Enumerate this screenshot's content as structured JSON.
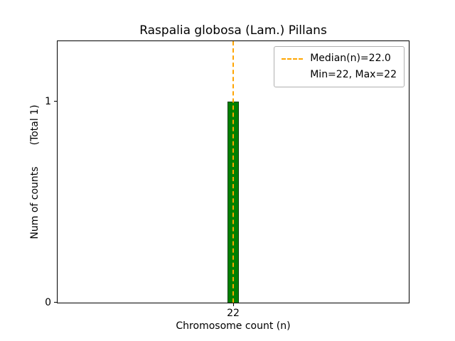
{
  "chart_data": {
    "type": "bar",
    "title": "Raspalia globosa (Lam.) Pillans",
    "xlabel": "Chromosome count (n)",
    "ylabel": "Num of counts",
    "ylabel_annotation": "(Total 1)",
    "categories": [
      "22"
    ],
    "values": [
      1
    ],
    "ylim": [
      0,
      1.3
    ],
    "yticks": [
      {
        "value": 0,
        "label": "0"
      },
      {
        "value": 1,
        "label": "1"
      }
    ],
    "xticks": [
      {
        "value": 22,
        "label": "22"
      }
    ],
    "bar_color": "#008000",
    "bar_edge_color": "#0b3d0b",
    "median_line": {
      "value": 22.0,
      "color": "#ffa500",
      "style": "dashed"
    },
    "stats": {
      "median": 22.0,
      "min": 22,
      "max": 22,
      "total": 1
    },
    "legend": {
      "position": "upper right",
      "entries": [
        {
          "label": "Median(n)=22.0",
          "handle": "orange-dashed-line"
        },
        {
          "label": "Min=22, Max=22",
          "handle": "none"
        }
      ]
    }
  }
}
